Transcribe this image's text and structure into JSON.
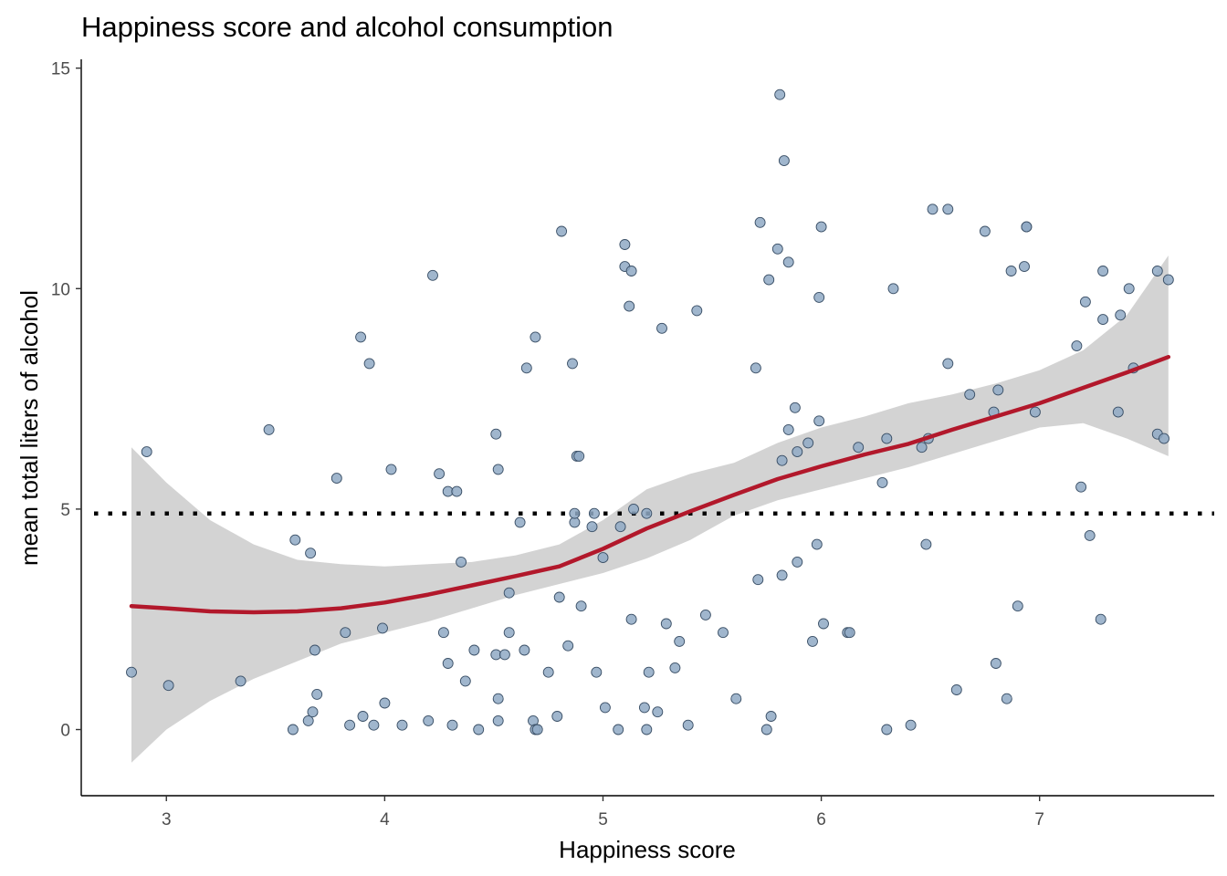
{
  "chart_data": {
    "type": "scatter",
    "title": "Happiness score and alcohol consumption",
    "xlabel": "Happiness score",
    "ylabel": "mean total liters of alcohol",
    "xlim": [
      2.61,
      7.8
    ],
    "ylim": [
      -1.5,
      15.2
    ],
    "x_ticks": [
      "3",
      "4",
      "5",
      "6",
      "7"
    ],
    "y_ticks": [
      "0",
      "5",
      "10",
      "15"
    ],
    "grid": false,
    "reference_line": {
      "y": 4.9,
      "style": "dotted",
      "color": "#000000"
    },
    "colors": {
      "point_fill": "#8FA9C4",
      "point_stroke": "#3A4F66",
      "smooth_line": "#B2182B",
      "ribbon": "#D3D3D3"
    },
    "points": [
      [
        2.84,
        1.3
      ],
      [
        2.91,
        6.3
      ],
      [
        3.01,
        1.0
      ],
      [
        3.34,
        1.1
      ],
      [
        3.47,
        6.8
      ],
      [
        3.58,
        0.0
      ],
      [
        3.59,
        4.3
      ],
      [
        3.65,
        0.2
      ],
      [
        3.66,
        4.0
      ],
      [
        3.67,
        0.4
      ],
      [
        3.68,
        1.8
      ],
      [
        3.69,
        0.8
      ],
      [
        3.78,
        5.7
      ],
      [
        3.82,
        2.2
      ],
      [
        3.84,
        0.1
      ],
      [
        3.89,
        8.9
      ],
      [
        3.9,
        0.3
      ],
      [
        3.93,
        8.3
      ],
      [
        3.95,
        0.1
      ],
      [
        3.99,
        2.3
      ],
      [
        4.0,
        0.6
      ],
      [
        4.03,
        5.9
      ],
      [
        4.08,
        0.1
      ],
      [
        4.2,
        0.2
      ],
      [
        4.22,
        10.3
      ],
      [
        4.25,
        5.8
      ],
      [
        4.27,
        2.2
      ],
      [
        4.29,
        1.5
      ],
      [
        4.29,
        5.4
      ],
      [
        4.31,
        0.1
      ],
      [
        4.33,
        5.4
      ],
      [
        4.35,
        3.8
      ],
      [
        4.37,
        1.1
      ],
      [
        4.41,
        1.8
      ],
      [
        4.43,
        0.0
      ],
      [
        4.51,
        6.7
      ],
      [
        4.51,
        1.7
      ],
      [
        4.52,
        0.7
      ],
      [
        4.52,
        0.2
      ],
      [
        4.52,
        5.9
      ],
      [
        4.55,
        1.7
      ],
      [
        4.57,
        2.2
      ],
      [
        4.57,
        3.1
      ],
      [
        4.62,
        4.7
      ],
      [
        4.64,
        1.8
      ],
      [
        4.65,
        8.2
      ],
      [
        4.68,
        0.2
      ],
      [
        4.69,
        8.9
      ],
      [
        4.69,
        0.0
      ],
      [
        4.7,
        0.0
      ],
      [
        4.75,
        1.3
      ],
      [
        4.79,
        0.3
      ],
      [
        4.8,
        3.0
      ],
      [
        4.81,
        11.3
      ],
      [
        4.84,
        1.9
      ],
      [
        4.86,
        8.3
      ],
      [
        4.87,
        4.7
      ],
      [
        4.87,
        4.9
      ],
      [
        4.88,
        6.2
      ],
      [
        4.89,
        6.2
      ],
      [
        4.9,
        2.8
      ],
      [
        4.95,
        4.6
      ],
      [
        4.96,
        4.9
      ],
      [
        4.97,
        1.3
      ],
      [
        5.0,
        3.9
      ],
      [
        5.01,
        0.5
      ],
      [
        5.07,
        0.0
      ],
      [
        5.08,
        4.6
      ],
      [
        5.1,
        10.5
      ],
      [
        5.1,
        11.0
      ],
      [
        5.12,
        9.6
      ],
      [
        5.13,
        10.4
      ],
      [
        5.13,
        2.5
      ],
      [
        5.14,
        5.0
      ],
      [
        5.19,
        0.5
      ],
      [
        5.2,
        0.0
      ],
      [
        5.2,
        4.9
      ],
      [
        5.21,
        1.3
      ],
      [
        5.25,
        0.4
      ],
      [
        5.27,
        9.1
      ],
      [
        5.29,
        2.4
      ],
      [
        5.33,
        1.4
      ],
      [
        5.35,
        2.0
      ],
      [
        5.39,
        0.1
      ],
      [
        5.43,
        9.5
      ],
      [
        5.47,
        2.6
      ],
      [
        5.55,
        2.2
      ],
      [
        5.61,
        0.7
      ],
      [
        5.7,
        8.2
      ],
      [
        5.71,
        3.4
      ],
      [
        5.72,
        11.5
      ],
      [
        5.75,
        0.0
      ],
      [
        5.76,
        10.2
      ],
      [
        5.77,
        0.3
      ],
      [
        5.8,
        10.9
      ],
      [
        5.81,
        14.4
      ],
      [
        5.82,
        3.5
      ],
      [
        5.82,
        6.1
      ],
      [
        5.83,
        12.9
      ],
      [
        5.85,
        10.6
      ],
      [
        5.85,
        6.8
      ],
      [
        5.88,
        7.3
      ],
      [
        5.89,
        6.3
      ],
      [
        5.89,
        3.8
      ],
      [
        5.94,
        6.5
      ],
      [
        5.96,
        2.0
      ],
      [
        5.98,
        4.2
      ],
      [
        5.99,
        9.8
      ],
      [
        5.99,
        7.0
      ],
      [
        6.0,
        11.4
      ],
      [
        6.01,
        2.4
      ],
      [
        6.12,
        2.2
      ],
      [
        6.13,
        2.2
      ],
      [
        6.17,
        6.4
      ],
      [
        6.28,
        5.6
      ],
      [
        6.3,
        0.0
      ],
      [
        6.3,
        6.6
      ],
      [
        6.33,
        10.0
      ],
      [
        6.41,
        0.1
      ],
      [
        6.46,
        6.4
      ],
      [
        6.48,
        4.2
      ],
      [
        6.49,
        6.6
      ],
      [
        6.51,
        11.8
      ],
      [
        6.58,
        11.8
      ],
      [
        6.58,
        8.3
      ],
      [
        6.62,
        0.9
      ],
      [
        6.68,
        7.6
      ],
      [
        6.75,
        11.3
      ],
      [
        6.79,
        7.2
      ],
      [
        6.8,
        1.5
      ],
      [
        6.81,
        7.7
      ],
      [
        6.85,
        0.7
      ],
      [
        6.87,
        10.4
      ],
      [
        6.9,
        2.8
      ],
      [
        6.93,
        10.5
      ],
      [
        6.94,
        11.4
      ],
      [
        6.94,
        11.4
      ],
      [
        6.98,
        7.2
      ],
      [
        7.17,
        8.7
      ],
      [
        7.19,
        5.5
      ],
      [
        7.21,
        9.7
      ],
      [
        7.23,
        4.4
      ],
      [
        7.28,
        2.5
      ],
      [
        7.29,
        10.4
      ],
      [
        7.29,
        9.3
      ],
      [
        7.36,
        7.2
      ],
      [
        7.37,
        9.4
      ],
      [
        7.41,
        10.0
      ],
      [
        7.43,
        8.2
      ],
      [
        7.54,
        10.4
      ],
      [
        7.54,
        6.7
      ],
      [
        7.57,
        6.6
      ],
      [
        7.59,
        10.2
      ]
    ],
    "smooth": {
      "method": "loess",
      "x": [
        2.84,
        3.0,
        3.2,
        3.4,
        3.6,
        3.8,
        4.0,
        4.2,
        4.4,
        4.6,
        4.8,
        5.0,
        5.2,
        5.4,
        5.6,
        5.8,
        6.0,
        6.2,
        6.4,
        6.6,
        6.8,
        7.0,
        7.2,
        7.4,
        7.59
      ],
      "y": [
        2.8,
        2.75,
        2.68,
        2.66,
        2.68,
        2.75,
        2.88,
        3.06,
        3.27,
        3.48,
        3.7,
        4.1,
        4.56,
        4.95,
        5.32,
        5.68,
        5.97,
        6.24,
        6.48,
        6.8,
        7.1,
        7.4,
        7.75,
        8.1,
        8.45
      ],
      "lower": [
        -0.75,
        0.0,
        0.65,
        1.15,
        1.55,
        1.95,
        2.2,
        2.45,
        2.75,
        3.05,
        3.3,
        3.55,
        3.88,
        4.3,
        4.85,
        5.2,
        5.45,
        5.7,
        5.95,
        6.25,
        6.55,
        6.85,
        6.95,
        6.6,
        6.2
      ],
      "upper": [
        6.4,
        5.6,
        4.75,
        4.2,
        3.85,
        3.75,
        3.7,
        3.75,
        3.8,
        3.95,
        4.2,
        4.75,
        5.45,
        5.8,
        6.05,
        6.5,
        6.85,
        7.1,
        7.4,
        7.6,
        7.85,
        8.15,
        8.6,
        9.4,
        10.75
      ]
    }
  }
}
